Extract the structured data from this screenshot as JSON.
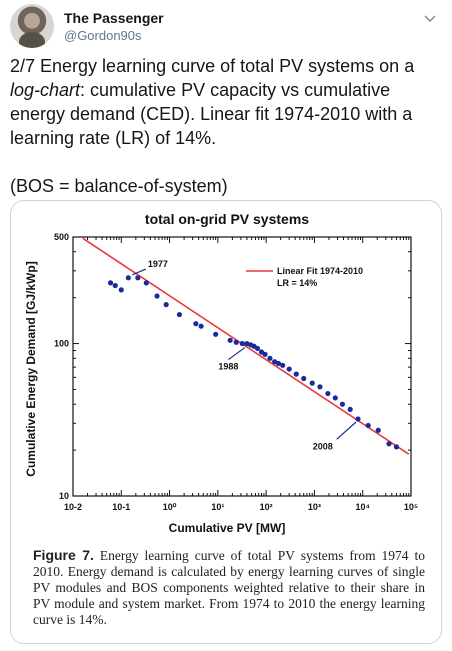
{
  "tweet": {
    "author_name": "The Passenger",
    "author_handle": "@Gordon90s",
    "text_part1": "2/7 Energy learning curve of total PV systems on a ",
    "text_italic": "log-chart",
    "text_part2": ": cumulative PV capacity vs cumulative energy demand (CED). Linear fit 1974-2010 with a learning rate (LR) of 14%.",
    "text_line2": "(BOS = balance-of-system)"
  },
  "figure": {
    "caption_label": "Figure 7.",
    "caption_text": "Energy learning curve of total PV systems from 1974 to 2010. Energy demand is calculated by energy learning curves of single PV modules and BOS components weighted relative to their share in PV module and system market. From 1974 to 2010 the energy learning curve is 14%."
  },
  "chart_data": {
    "type": "scatter",
    "title": "total on-grid PV systems",
    "xlabel": "Cumulative PV [MW]",
    "ylabel": "Cumulative Energy Demand [GJ/kWp]",
    "xscale": "log",
    "yscale": "log",
    "xlim": [
      0.01,
      100000
    ],
    "ylim": [
      10,
      500
    ],
    "x_ticks": [
      "10-2",
      "10-1",
      "10⁰",
      "10¹",
      "10²",
      "10³",
      "10⁴",
      "10⁵"
    ],
    "y_ticks": [
      "10",
      "100",
      "500"
    ],
    "legend": {
      "placement": "top-right",
      "label": "Linear Fit 1974-2010",
      "sublabel": "LR = 14%"
    },
    "fit_line": {
      "color": "#e8393b",
      "x": [
        0.016,
        90000
      ],
      "y": [
        490,
        18.8
      ]
    },
    "point_color": "#1a2a9c",
    "annotations": [
      {
        "text": "1977",
        "x": 0.2,
        "y": 290
      },
      {
        "text": "1988",
        "x": 20,
        "y": 100
      },
      {
        "text": "2008",
        "x": 10000,
        "y": 25
      }
    ],
    "series": [
      {
        "points": [
          [
            0.06,
            250
          ],
          [
            0.075,
            240
          ],
          [
            0.1,
            225
          ],
          [
            0.14,
            270
          ],
          [
            0.22,
            270
          ],
          [
            0.33,
            250
          ],
          [
            0.55,
            205
          ],
          [
            0.85,
            180
          ],
          [
            1.6,
            155
          ],
          [
            3.5,
            135
          ],
          [
            4.5,
            130
          ],
          [
            9,
            115
          ],
          [
            18,
            105
          ],
          [
            24,
            102
          ],
          [
            32,
            100
          ],
          [
            40,
            100
          ],
          [
            48,
            98
          ],
          [
            56,
            96
          ],
          [
            66,
            93
          ],
          [
            80,
            88
          ],
          [
            95,
            85
          ],
          [
            120,
            80
          ],
          [
            150,
            76
          ],
          [
            180,
            74
          ],
          [
            220,
            72
          ],
          [
            300,
            68
          ],
          [
            420,
            63
          ],
          [
            600,
            59
          ],
          [
            900,
            55
          ],
          [
            1300,
            52
          ],
          [
            1900,
            47
          ],
          [
            2700,
            44
          ],
          [
            3800,
            40
          ],
          [
            5500,
            37
          ],
          [
            8000,
            32
          ],
          [
            13000,
            29
          ],
          [
            21000,
            27
          ],
          [
            35000,
            22
          ],
          [
            50000,
            21
          ]
        ]
      }
    ]
  }
}
